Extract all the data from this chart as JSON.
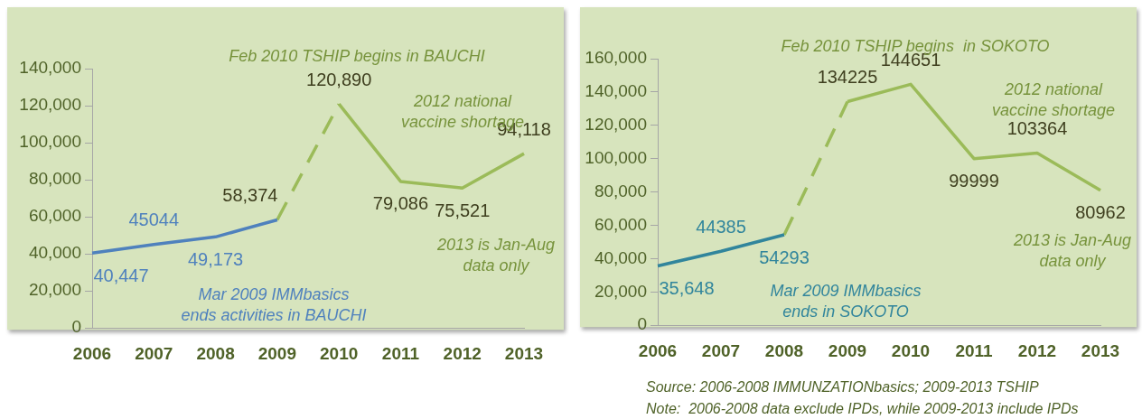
{
  "chart_data": [
    {
      "type": "line",
      "categories": [
        "2006",
        "2007",
        "2008",
        "2009",
        "2010",
        "2011",
        "2012",
        "2013"
      ],
      "ylim": [
        0,
        140000
      ],
      "yticks": [
        {
          "value": 0,
          "label": "0"
        },
        {
          "value": 20000,
          "label": "20,000"
        },
        {
          "value": 40000,
          "label": "40,000"
        },
        {
          "value": 60000,
          "label": "60,000"
        },
        {
          "value": 80000,
          "label": "80,000"
        },
        {
          "value": 100000,
          "label": "100,000"
        },
        {
          "value": 120000,
          "label": "120,000"
        },
        {
          "value": 140000,
          "label": "140,000"
        }
      ],
      "grid": false,
      "legend": false,
      "marker": "none",
      "series": [
        {
          "color": "#4f81bd",
          "line_style": "solid",
          "values": [
            40447,
            45044,
            49173,
            58374,
            null,
            null,
            null,
            null
          ],
          "value_labels": [
            "40,447",
            "45044",
            "49,173",
            null,
            null,
            null,
            null,
            null
          ]
        },
        {
          "color": "#9bbb59",
          "line_style": "dashed",
          "values": [
            null,
            null,
            null,
            58374,
            120890,
            null,
            null,
            null
          ],
          "value_labels": [
            null,
            null,
            null,
            "58,374",
            null,
            null,
            null,
            null
          ]
        },
        {
          "color": "#9bbb59",
          "line_style": "solid",
          "values": [
            null,
            null,
            null,
            null,
            120890,
            79086,
            75521,
            94118
          ],
          "value_labels": [
            null,
            null,
            null,
            null,
            "120,890",
            "79,086",
            "75,521",
            "94,118"
          ]
        }
      ],
      "annotations": [
        "Feb 2010 TSHIP begins in BAUCHI",
        "2012 national\nvaccine shortage",
        "2013 is Jan-Aug\ndata only",
        "Mar 2009 IMMbasics\nends activities in BAUCHI"
      ]
    },
    {
      "type": "line",
      "categories": [
        "2006",
        "2007",
        "2008",
        "2009",
        "2010",
        "2011",
        "2012",
        "2013"
      ],
      "ylim": [
        0,
        160000
      ],
      "yticks": [
        {
          "value": 0,
          "label": "0"
        },
        {
          "value": 20000,
          "label": "20,000"
        },
        {
          "value": 40000,
          "label": "40,000"
        },
        {
          "value": 60000,
          "label": "60,000"
        },
        {
          "value": 80000,
          "label": "80,000"
        },
        {
          "value": 100000,
          "label": "100,000"
        },
        {
          "value": 120000,
          "label": "120,000"
        },
        {
          "value": 140000,
          "label": "140,000"
        },
        {
          "value": 160000,
          "label": "160,000"
        }
      ],
      "grid": false,
      "legend": false,
      "marker": "none",
      "series": [
        {
          "color": "#31859c",
          "line_style": "solid",
          "values": [
            35648,
            44385,
            54293,
            null,
            null,
            null,
            null,
            null
          ],
          "value_labels": [
            "35,648",
            "44385",
            "54293",
            null,
            null,
            null,
            null,
            null
          ]
        },
        {
          "color": "#9bbb59",
          "line_style": "dashed",
          "values": [
            null,
            null,
            54293,
            134225,
            null,
            null,
            null,
            null
          ],
          "value_labels": [
            null,
            null,
            null,
            null,
            null,
            null,
            null,
            null
          ]
        },
        {
          "color": "#9bbb59",
          "line_style": "solid",
          "values": [
            null,
            null,
            null,
            134225,
            144651,
            99999,
            103364,
            80962
          ],
          "value_labels": [
            null,
            null,
            null,
            "134225",
            "144651",
            "99999",
            "103364",
            "80962"
          ]
        }
      ],
      "annotations": [
        "Feb 2010 TSHIP begins  in SOKOTO",
        "2012 national\nvaccine shortage",
        "2013 is Jan-Aug\ndata only",
        "Mar 2009 IMMbasics\nends in SOKOTO",
        "Source: 2006-2008 IMMUNZATIONbasics; 2009-2013 TSHIP",
        "Note:  2006-2008 data exclude IPDs, while 2009-2013 include IPDs"
      ]
    }
  ]
}
